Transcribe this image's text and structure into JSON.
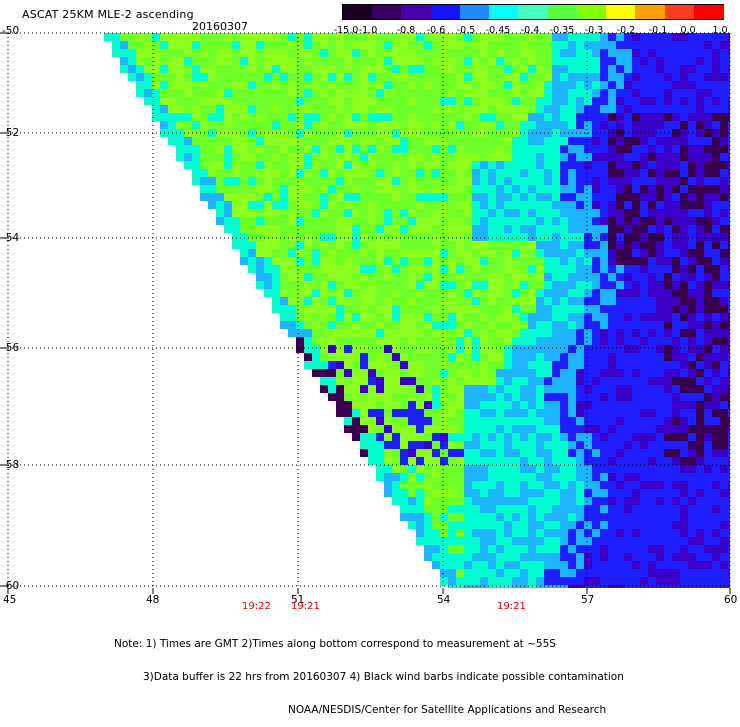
{
  "title": "ASCAT 25KM MLE-2 ascending",
  "date": "20160307",
  "colorbar": {
    "labels": [
      "-15.0",
      "-1.0",
      "-0.8",
      "-0.6",
      "-0.5",
      "-0.45",
      "-0.4",
      "-0.35",
      "-0.3",
      "-0.2",
      "-0.1",
      "0.0",
      "1.0"
    ],
    "colors": [
      "#1a0020",
      "#3a0060",
      "#4a00a8",
      "#1414ff",
      "#1e8cff",
      "#00ffff",
      "#40ffc0",
      "#58ff40",
      "#88ff00",
      "#ffff00",
      "#ffa000",
      "#ff3c1e",
      "#ff0000"
    ]
  },
  "axes": {
    "lat_labels": [
      "-50",
      "-52",
      "-54",
      "-56",
      "-58",
      "-60"
    ],
    "lon_labels": [
      "45",
      "48",
      "51",
      "54",
      "57",
      "60"
    ]
  },
  "times": [
    "19:22",
    "19:21",
    "19:21"
  ],
  "note": {
    "line1": "Note: 1) Times are GMT 2)Times along bottom correspond to measurement at ~55S",
    "line2": "3)Data buffer is 22 hrs from 20160307 4) Black wind barbs indicate possible contamination",
    "line3": "NOAA/NESDIS/Center for Satellite Applications and Research"
  },
  "map_colors": {
    "green": "#6eff28",
    "green_light": "#8cff1e",
    "cyan": "#00ffd0",
    "sky": "#1eb4ff",
    "blue": "#1e1eff",
    "violet": "#3a00c8",
    "dark": "#3a0050",
    "grid": "#000000"
  }
}
